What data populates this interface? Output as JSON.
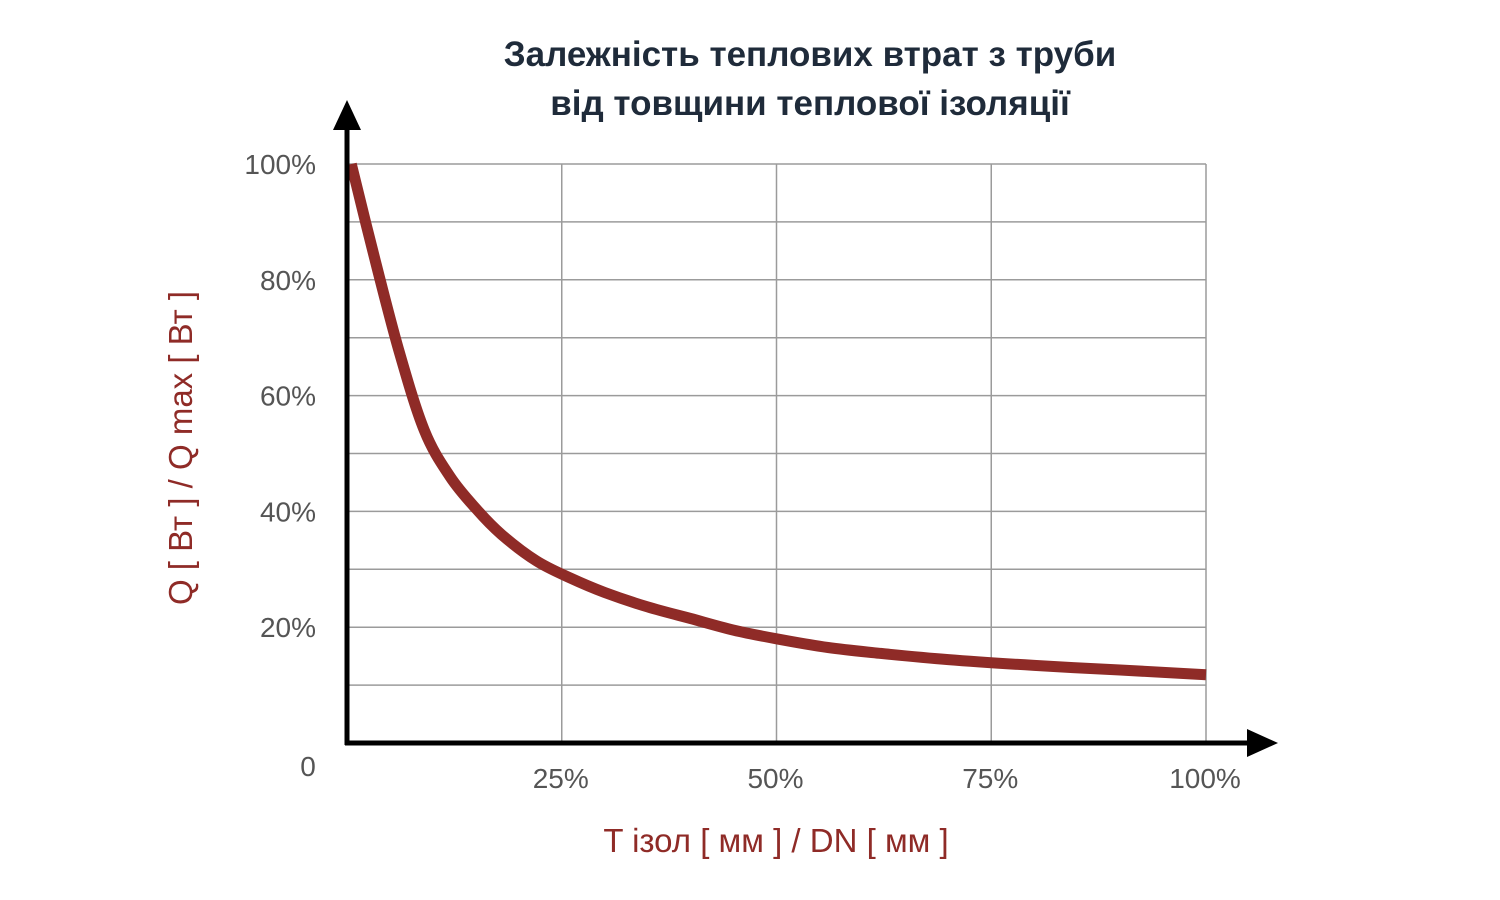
{
  "chart_data": {
    "type": "line",
    "title_lines": [
      "Залежність теплових втрат з труби",
      "від товщини теплової ізоляції"
    ],
    "xlabel": "T ізол [ мм ] / DN [ мм ]",
    "ylabel": "Q [ Вт ]  / Q max [ Вт ]",
    "x_ticks": [
      {
        "value": 25,
        "label": "25%"
      },
      {
        "value": 50,
        "label": "50%"
      },
      {
        "value": 75,
        "label": "75%"
      },
      {
        "value": 100,
        "label": "100%"
      }
    ],
    "y_ticks": [
      {
        "value": 20,
        "label": "20%"
      },
      {
        "value": 40,
        "label": "40%"
      },
      {
        "value": 60,
        "label": "60%"
      },
      {
        "value": 80,
        "label": "80%"
      },
      {
        "value": 100,
        "label": "100%"
      }
    ],
    "origin_label": "0",
    "xlim": [
      0,
      100
    ],
    "ylim": [
      0,
      100
    ],
    "grid": true,
    "series": [
      {
        "color": "#8f2b27",
        "x": [
          0.5,
          3,
          6,
          9,
          12,
          15,
          18,
          22,
          26,
          30,
          35,
          40,
          45,
          50,
          56,
          62,
          70,
          80,
          90,
          100
        ],
        "y": [
          100,
          85,
          68,
          54,
          46,
          40.5,
          36,
          31.5,
          28.5,
          26,
          23.5,
          21.5,
          19.5,
          18,
          16.5,
          15.5,
          14.4,
          13.4,
          12.6,
          11.8
        ]
      }
    ]
  }
}
